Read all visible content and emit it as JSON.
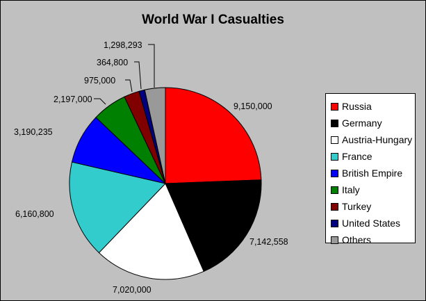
{
  "chart_data": {
    "type": "pie",
    "title": "World War I Casualties",
    "legend_position": "right",
    "background": "#c0c0c0",
    "slices": [
      {
        "name": "Russia",
        "value": 9150000,
        "label": "9,150,000",
        "color": "#ff0000"
      },
      {
        "name": "Germany",
        "value": 7142558,
        "label": "7,142,558",
        "color": "#000000"
      },
      {
        "name": "Austria-Hungary",
        "value": 7020000,
        "label": "7,020,000",
        "color": "#ffffff"
      },
      {
        "name": "France",
        "value": 6160800,
        "label": "6,160,800",
        "color": "#33cccc"
      },
      {
        "name": "British Empire",
        "value": 3190235,
        "label": "3,190,235",
        "color": "#0000ff"
      },
      {
        "name": "Italy",
        "value": 2197000,
        "label": "2,197,000",
        "color": "#008000"
      },
      {
        "name": "Turkey",
        "value": 975000,
        "label": "975,000",
        "color": "#800000"
      },
      {
        "name": "United States",
        "value": 364800,
        "label": "364,800",
        "color": "#000080"
      },
      {
        "name": "Others",
        "value": 1298293,
        "label": "1,298,293",
        "color": "#999999"
      }
    ]
  }
}
